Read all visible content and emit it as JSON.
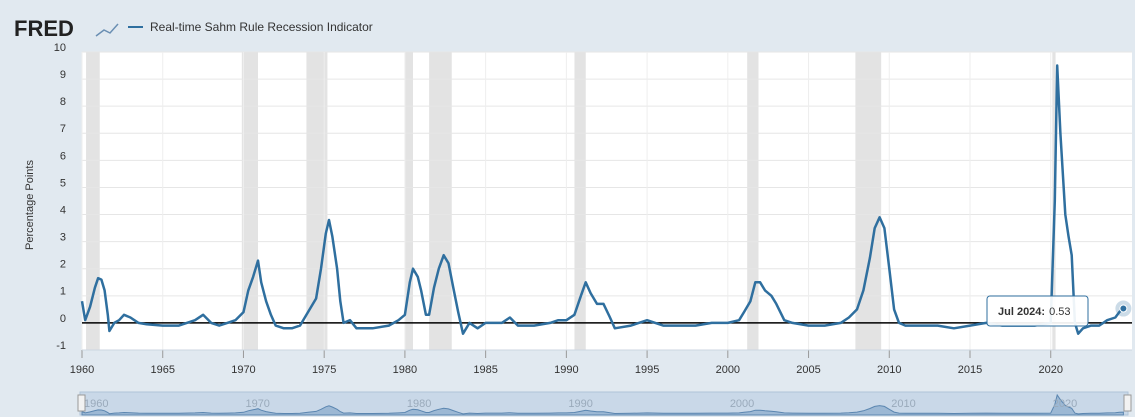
{
  "brand": "FRED",
  "chart_data": {
    "type": "line",
    "y_label": "Percentage Points",
    "xlim": [
      1960,
      2024.6
    ],
    "ylim": [
      -1,
      10
    ],
    "xticks": [
      1960,
      1965,
      1970,
      1975,
      1980,
      1985,
      1990,
      1995,
      2000,
      2005,
      2010,
      2015,
      2020
    ],
    "yticks": [
      -1,
      0,
      1,
      2,
      3,
      4,
      5,
      6,
      7,
      8,
      9,
      10
    ],
    "grid": true,
    "recessions": [
      [
        1960.25,
        1961.1
      ],
      [
        1969.9,
        1970.9
      ],
      [
        1973.9,
        1975.2
      ],
      [
        1980.0,
        1980.5
      ],
      [
        1981.5,
        1982.9
      ],
      [
        1990.5,
        1991.2
      ],
      [
        2001.2,
        2001.9
      ],
      [
        2007.9,
        2009.5
      ],
      [
        2020.1,
        2020.3
      ]
    ],
    "x": [
      1960,
      1960.2,
      1960.5,
      1960.8,
      1961,
      1961.2,
      1961.4,
      1961.6,
      1961.7,
      1962,
      1962.3,
      1962.6,
      1963,
      1963.5,
      1964,
      1965,
      1966,
      1967,
      1967.5,
      1968,
      1968.5,
      1969,
      1969.5,
      1970,
      1970.3,
      1970.6,
      1970.9,
      1971.1,
      1971.4,
      1971.7,
      1972,
      1972.5,
      1973,
      1973.5,
      1974,
      1974.5,
      1974.8,
      1975.1,
      1975.3,
      1975.5,
      1975.8,
      1976,
      1976.2,
      1976.6,
      1977,
      1978,
      1979,
      1979.6,
      1980,
      1980.3,
      1980.5,
      1980.8,
      1981,
      1981.3,
      1981.5,
      1981.8,
      1982.1,
      1982.4,
      1982.7,
      1983,
      1983.3,
      1983.6,
      1984,
      1984.5,
      1985,
      1986,
      1986.5,
      1987,
      1988,
      1989,
      1989.5,
      1990,
      1990.5,
      1990.9,
      1991.2,
      1991.5,
      1991.9,
      1992.3,
      1992.7,
      1993,
      1994,
      1995,
      1996,
      1997,
      1998,
      1999,
      2000,
      2000.7,
      2001,
      2001.4,
      2001.7,
      2002,
      2002.3,
      2002.7,
      2003,
      2003.5,
      2004,
      2005,
      2006,
      2007,
      2007.5,
      2008,
      2008.4,
      2008.8,
      2009.1,
      2009.4,
      2009.7,
      2010,
      2010.3,
      2010.6,
      2011,
      2012,
      2013,
      2014,
      2015,
      2016,
      2017,
      2018,
      2019,
      2020,
      2020.25,
      2020.4,
      2020.6,
      2020.9,
      2021.1,
      2021.3,
      2021.5,
      2021.7,
      2022,
      2022.5,
      2023,
      2023.5,
      2024,
      2024.25,
      2024.5
    ],
    "series": [
      {
        "name": "Real-time Sahm Rule Recession Indicator",
        "color": "#2f6f9f",
        "values": [
          0.8,
          0.1,
          0.6,
          1.3,
          1.65,
          1.6,
          1.2,
          0.3,
          -0.3,
          0,
          0.1,
          0.3,
          0.2,
          0,
          -0.05,
          -0.1,
          -0.1,
          0.1,
          0.3,
          0,
          -0.1,
          0,
          0.1,
          0.4,
          1.2,
          1.7,
          2.3,
          1.5,
          0.8,
          0.3,
          -0.1,
          -0.2,
          -0.2,
          -0.1,
          0.4,
          0.9,
          2,
          3.3,
          3.8,
          3.2,
          2,
          0.8,
          0,
          0.1,
          -0.2,
          -0.2,
          -0.1,
          0.1,
          0.3,
          1.5,
          2,
          1.7,
          1.2,
          0.3,
          0.3,
          1.3,
          2,
          2.5,
          2.2,
          1.3,
          0.4,
          -0.4,
          0,
          -0.2,
          0,
          0,
          0.2,
          -0.1,
          -0.1,
          0,
          0.1,
          0.1,
          0.3,
          1,
          1.5,
          1.1,
          0.7,
          0.7,
          0.2,
          -0.2,
          -0.1,
          0.1,
          -0.1,
          -0.1,
          -0.1,
          0,
          0,
          0.1,
          0.4,
          0.8,
          1.5,
          1.5,
          1.2,
          1,
          0.7,
          0.1,
          0,
          -0.1,
          -0.1,
          0,
          0.2,
          0.5,
          1.2,
          2.4,
          3.5,
          3.9,
          3.5,
          2,
          0.5,
          0,
          -0.1,
          -0.1,
          -0.1,
          -0.2,
          -0.1,
          0,
          -0.1,
          -0.1,
          -0.1,
          0,
          4.5,
          9.5,
          7,
          4,
          3.2,
          2.5,
          0,
          -0.4,
          -0.2,
          -0.1,
          -0.1,
          0.1,
          0.2,
          0.4,
          0.53
        ]
      }
    ],
    "tooltip": {
      "label": "Jul 2024:",
      "value": 0.53
    },
    "navigator_ticks": [
      1960,
      1970,
      1980,
      1990,
      2000,
      2010,
      2020
    ]
  }
}
